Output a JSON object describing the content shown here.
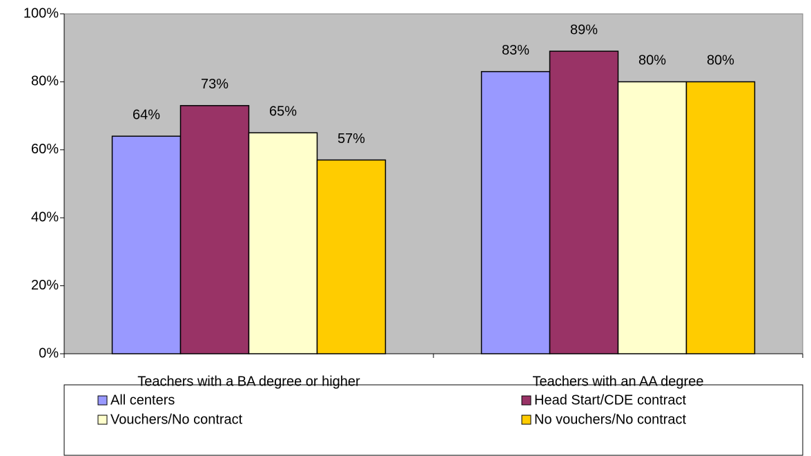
{
  "chart_data": {
    "type": "bar",
    "categories": [
      "Teachers with a BA degree or higher",
      "Teachers with an AA degree"
    ],
    "series": [
      {
        "name": "All centers",
        "color": "#9999FF",
        "values": [
          64,
          83
        ],
        "value_labels": [
          "64%",
          "83%"
        ]
      },
      {
        "name": "Head Start/CDE contract",
        "color": "#993366",
        "values": [
          73,
          89
        ],
        "value_labels": [
          "73%",
          "89%"
        ]
      },
      {
        "name": "Vouchers/No contract",
        "color": "#FFFFCC",
        "values": [
          65,
          80
        ],
        "value_labels": [
          "65%",
          "80%"
        ]
      },
      {
        "name": "No vouchers/No contract",
        "color": "#FFCC00",
        "values": [
          57,
          80
        ],
        "value_labels": [
          "57%",
          "80%"
        ]
      }
    ],
    "ylim": [
      0,
      100
    ],
    "yticks": [
      {
        "value": 0,
        "label": "0%"
      },
      {
        "value": 20,
        "label": "20%"
      },
      {
        "value": 40,
        "label": "40%"
      },
      {
        "value": 60,
        "label": "60%"
      },
      {
        "value": 80,
        "label": "80%"
      },
      {
        "value": 100,
        "label": "100%"
      }
    ],
    "legend": "bottom"
  }
}
